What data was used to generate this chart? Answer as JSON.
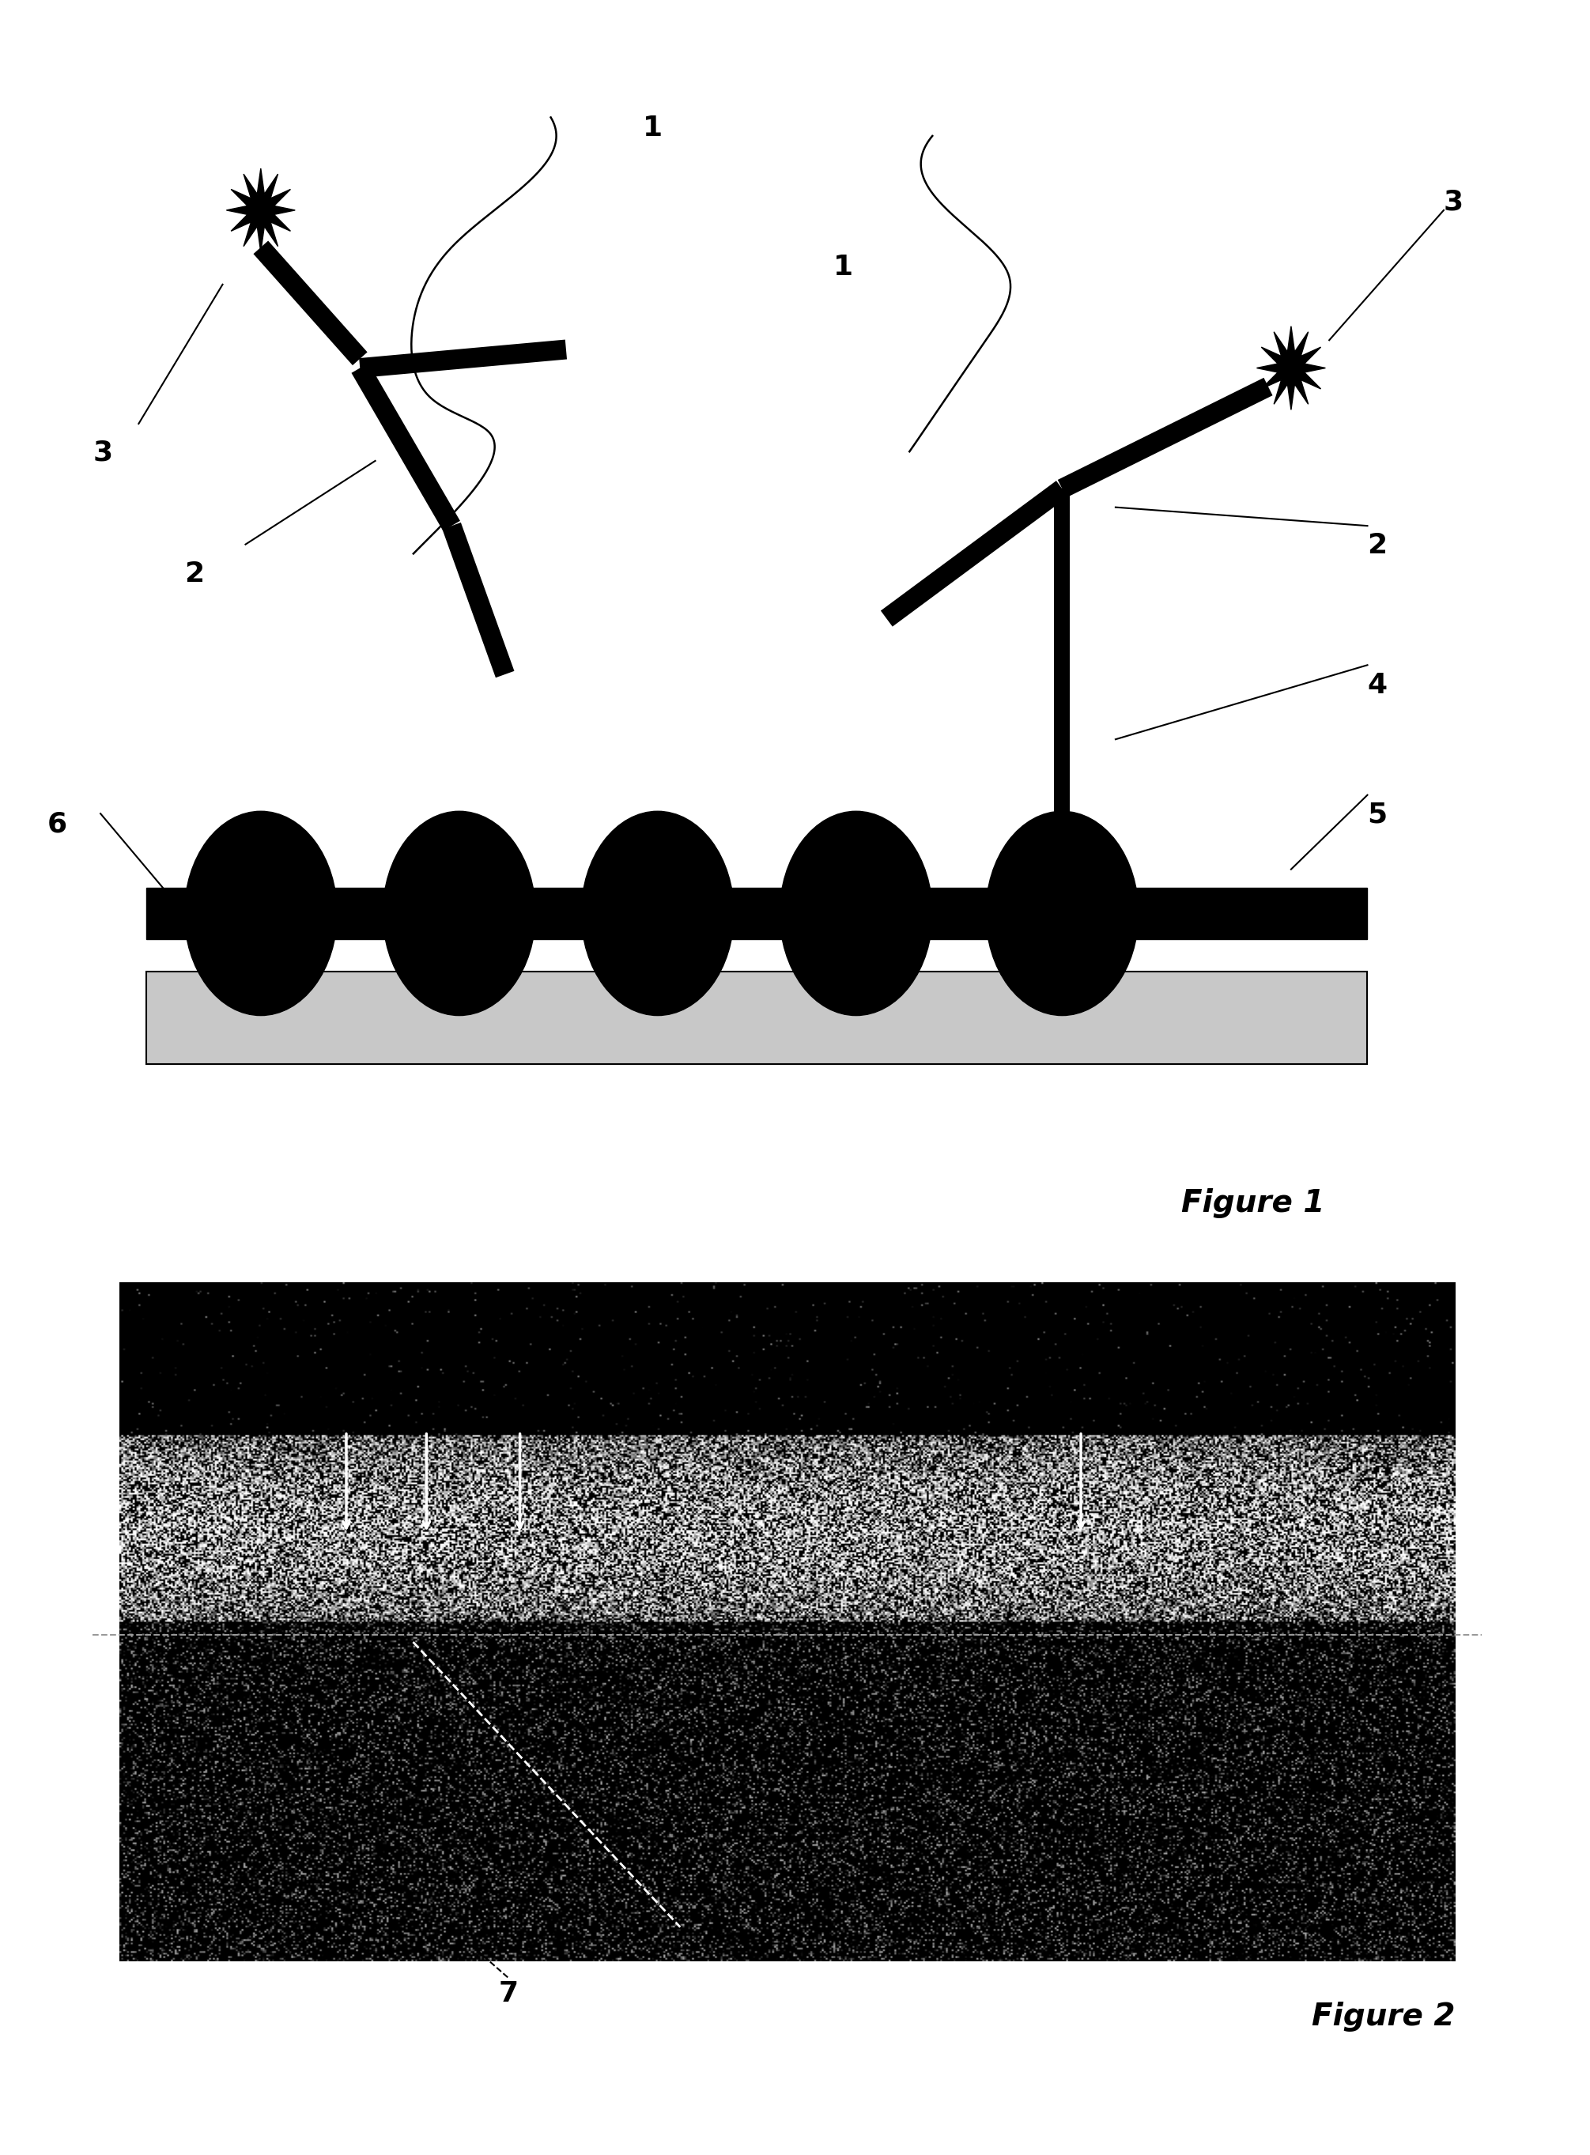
{
  "background_color": "#ffffff",
  "fig_width": 20.11,
  "fig_height": 27.26,
  "fig1_label": "Figure 1",
  "fig2_label": "Figure 2",
  "bead_color": "#000000",
  "strip_color": "#000000",
  "substrate_color": "#cccccc",
  "antibody_lw": 18,
  "starburst_outer": 0.45,
  "starburst_inner": 0.18,
  "starburst_points": 12,
  "label_fontsize": 26,
  "fig_label_fontsize": 28
}
